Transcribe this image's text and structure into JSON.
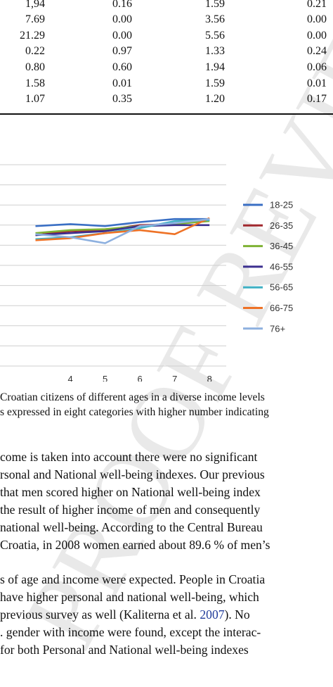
{
  "table": {
    "rows": [
      [
        "1,94",
        "0.16",
        "1.59",
        "0.21"
      ],
      [
        "7.69",
        "0.00",
        "3.56",
        "0.00"
      ],
      [
        "21.29",
        "0.00",
        "5.56",
        "0.00"
      ],
      [
        "0.22",
        "0.97",
        "1.33",
        "0.24"
      ],
      [
        "0.80",
        "0.60",
        "1.94",
        "0.06"
      ],
      [
        "1.58",
        "0.01",
        "1.59",
        "0.01"
      ],
      [
        "1.07",
        "0.35",
        "1.20",
        "0.17"
      ]
    ]
  },
  "chart_data": {
    "type": "line",
    "x": [
      3,
      4,
      5,
      6,
      7,
      8
    ],
    "x_tick_labels": [
      "4",
      "5",
      "6",
      "7",
      "8"
    ],
    "y_gridlines": 11,
    "legend_placement": "right",
    "series": [
      {
        "name": "18-25",
        "color": "#3a6fc4",
        "values": [
          6.95,
          7.05,
          6.95,
          7.15,
          7.3,
          7.3
        ]
      },
      {
        "name": "26-35",
        "color": "#a1282e",
        "values": [
          6.5,
          6.7,
          6.75,
          7.0,
          7.05,
          7.25
        ]
      },
      {
        "name": "36-45",
        "color": "#7fb234",
        "values": [
          6.6,
          6.75,
          6.8,
          6.95,
          7.05,
          7.2
        ]
      },
      {
        "name": "46-55",
        "color": "#3b2f8f",
        "values": [
          6.5,
          6.6,
          6.7,
          6.95,
          7.0,
          7.0
        ]
      },
      {
        "name": "56-65",
        "color": "#3fb0c4",
        "values": [
          6.3,
          6.4,
          6.6,
          6.85,
          7.2,
          7.25
        ]
      },
      {
        "name": "66-75",
        "color": "#ee7226",
        "values": [
          6.25,
          6.35,
          6.6,
          6.75,
          6.55,
          7.35
        ]
      },
      {
        "name": "76+",
        "color": "#8db0df",
        "values": [
          6.55,
          6.4,
          6.1,
          6.95,
          7.1,
          7.3
        ]
      }
    ]
  },
  "caption": {
    "line1": "Croatian citizens of different ages in a diverse income levels",
    "line2": "s expressed in eight categories with higher number indicating"
  },
  "body": {
    "p1": [
      "come is taken into account there were no significant",
      "rsonal and National well-being indexes. Our previous",
      " that men scored higher on National well-being index",
      " the result of higher income of men and consequently",
      "national well-being. According to the Central Bureau",
      "Croatia, in 2008 women earned about 89.6 % of men’s"
    ],
    "p2_line1": "s of age and income were expected. People in Croatia",
    "p2_line2": " have higher personal and national well-being, which",
    "p2_line3_pre": " previous survey as well (Kaliterna et al. ",
    "p2_line3_link": "2007",
    "p2_line3_post": "). No",
    "p2_line4": ". gender with income were found, except the interac-",
    "p2_line5": "  for both Personal and National well-being indexes"
  },
  "watermark": "PROOF  REVIEW"
}
